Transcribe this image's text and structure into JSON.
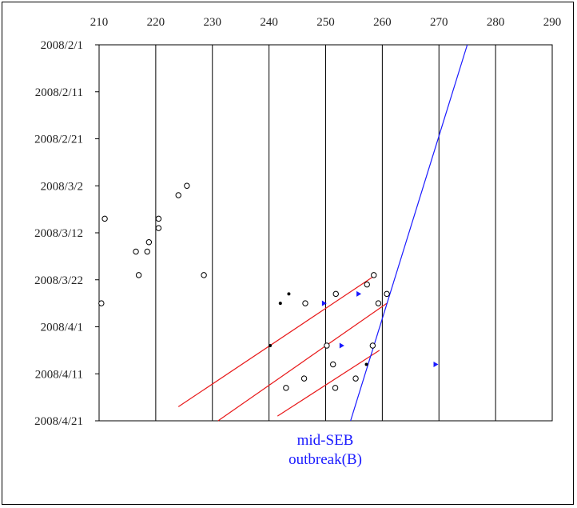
{
  "chart_data": {
    "type": "scatter",
    "title": "",
    "xlabel": "",
    "ylabel": "",
    "x_ticks": [
      210,
      220,
      230,
      240,
      250,
      260,
      270,
      280,
      290
    ],
    "xlim": [
      210,
      290
    ],
    "y_ticks": [
      "2008/2/1",
      "2008/2/11",
      "2008/2/21",
      "2008/3/2",
      "2008/3/12",
      "2008/3/22",
      "2008/4/1",
      "2008/4/11",
      "2008/4/21"
    ],
    "y_axis_inverted": true,
    "ylim_days": [
      0,
      80
    ],
    "gridlines": "vertical",
    "series": [
      {
        "marker": "open-circle",
        "color": "#000000",
        "points": [
          {
            "x": 211,
            "date": "2008/3/9"
          },
          {
            "x": 210.4,
            "date": "2008/3/27"
          },
          {
            "x": 220.5,
            "date": "2008/3/9"
          },
          {
            "x": 220.5,
            "date": "2008/3/11"
          },
          {
            "x": 218.8,
            "date": "2008/3/14"
          },
          {
            "x": 216.5,
            "date": "2008/3/16"
          },
          {
            "x": 218.5,
            "date": "2008/3/16"
          },
          {
            "x": 217,
            "date": "2008/3/21"
          },
          {
            "x": 224,
            "date": "2008/3/4"
          },
          {
            "x": 225.5,
            "date": "2008/3/2"
          },
          {
            "x": 228.5,
            "date": "2008/3/21"
          },
          {
            "x": 246.4,
            "date": "2008/3/27"
          },
          {
            "x": 251.8,
            "date": "2008/3/25"
          },
          {
            "x": 257.3,
            "date": "2008/3/23"
          },
          {
            "x": 258.5,
            "date": "2008/3/21"
          },
          {
            "x": 260.8,
            "date": "2008/3/25"
          },
          {
            "x": 259.3,
            "date": "2008/3/27"
          },
          {
            "x": 250.2,
            "date": "2008/4/5"
          },
          {
            "x": 258.3,
            "date": "2008/4/5"
          },
          {
            "x": 251.3,
            "date": "2008/4/9"
          },
          {
            "x": 246.2,
            "date": "2008/4/12"
          },
          {
            "x": 255.3,
            "date": "2008/4/12"
          },
          {
            "x": 243,
            "date": "2008/4/14"
          },
          {
            "x": 251.7,
            "date": "2008/4/14"
          }
        ]
      },
      {
        "marker": "small-dot",
        "color": "#000000",
        "points": [
          {
            "x": 242,
            "date": "2008/3/27"
          },
          {
            "x": 243.5,
            "date": "2008/3/25"
          },
          {
            "x": 240.2,
            "date": "2008/4/5"
          },
          {
            "x": 257.2,
            "date": "2008/4/9"
          }
        ]
      },
      {
        "marker": "triangle-right",
        "color": "#1a1aff",
        "points": [
          {
            "x": 249.7,
            "date": "2008/3/27"
          },
          {
            "x": 255.8,
            "date": "2008/3/25"
          },
          {
            "x": 252.8,
            "date": "2008/4/5"
          },
          {
            "x": 269.4,
            "date": "2008/4/9"
          }
        ]
      }
    ],
    "lines": [
      {
        "color": "#e8191a",
        "from": {
          "x": 224,
          "date": "2008/4/18"
        },
        "to": {
          "x": 258.8,
          "date": "2008/3/21"
        }
      },
      {
        "color": "#e8191a",
        "from": {
          "x": 231,
          "date": "2008/4/21"
        },
        "to": {
          "x": 260.8,
          "date": "2008/3/27"
        }
      },
      {
        "color": "#e8191a",
        "from": {
          "x": 241.5,
          "date": "2008/4/20"
        },
        "to": {
          "x": 259.5,
          "date": "2008/4/6"
        }
      },
      {
        "color": "#1a1aff",
        "from": {
          "x": 254.4,
          "date": "2008/4/21"
        },
        "to": {
          "x": 275,
          "date": "2008/2/1"
        }
      }
    ],
    "annotations": [
      {
        "text": "mid-SEB",
        "color": "#1a1aff"
      },
      {
        "text": "outbreak(B)",
        "color": "#1a1aff"
      }
    ]
  }
}
